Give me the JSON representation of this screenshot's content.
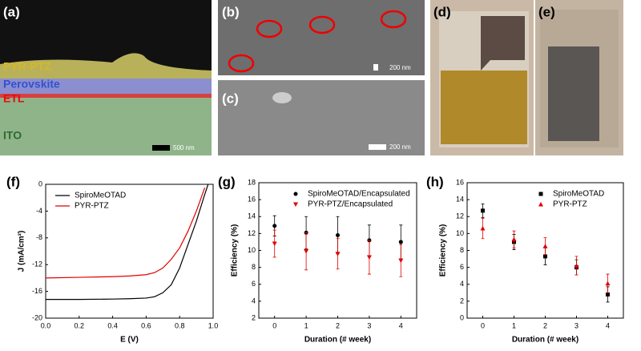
{
  "images": {
    "a": {
      "label": "(a)",
      "layers": [
        "PYR-PTZ",
        "Perovskite",
        "ETL",
        "ITO"
      ],
      "scale": "500 nm"
    },
    "b": {
      "label": "(b)",
      "scale": "200 nm"
    },
    "c": {
      "label": "(c)",
      "scale": "200 nm"
    },
    "d": {
      "label": "(d)"
    },
    "e": {
      "label": "(e)"
    }
  },
  "chart_data": [
    {
      "type": "line",
      "label": "(f)",
      "xlabel": "E (V)",
      "ylabel": "J (mA/cm²)",
      "x": [
        0,
        0.2,
        0.4,
        0.5,
        0.6,
        0.65,
        0.7,
        0.75,
        0.8,
        0.85,
        0.9,
        0.95,
        0.97
      ],
      "series": [
        {
          "name": "SpiroMeOTAD",
          "color": "#000000",
          "values": [
            -17.2,
            -17.2,
            -17.15,
            -17.1,
            -17.0,
            -16.8,
            -16.2,
            -15,
            -12.5,
            -9,
            -5.5,
            -1.5,
            0
          ]
        },
        {
          "name": "PYR-PTZ",
          "color": "#e00000",
          "values": [
            -14,
            -13.9,
            -13.8,
            -13.7,
            -13.5,
            -13.2,
            -12.5,
            -11.2,
            -9.5,
            -7,
            -4,
            -0.5,
            null
          ]
        }
      ],
      "xlim": [
        0,
        1.0
      ],
      "xticks": [
        {
          "value": 0,
          "label": "0.0"
        },
        0.2,
        0.4,
        0.6,
        0.8,
        {
          "value": 1,
          "label": "1.0"
        }
      ],
      "ylim": [
        -20,
        0
      ],
      "yticks": [
        0,
        -4,
        -8,
        -12,
        -16,
        -20
      ],
      "legend": "upper left"
    },
    {
      "type": "scatter",
      "label": "(g)",
      "xlabel": "Duration (# week)",
      "ylabel": "Efficiency (%)",
      "x": [
        0,
        1,
        2,
        3,
        4
      ],
      "series": [
        {
          "name": "SpiroMeOTAD/Encapsulated",
          "color": "#000000",
          "marker": "circle",
          "values": [
            12.9,
            12.1,
            11.8,
            11.2,
            11.0
          ],
          "errors": [
            1.2,
            1.9,
            2.2,
            1.8,
            2.0
          ]
        },
        {
          "name": "PYR-PTZ/Encapsulated",
          "color": "#e00000",
          "marker": "triangle-down",
          "values": [
            10.8,
            9.9,
            9.6,
            9.2,
            8.8
          ],
          "errors": [
            1.6,
            2.2,
            1.8,
            2.0,
            1.9
          ]
        }
      ],
      "xlim": [
        -0.5,
        4.5
      ],
      "xticks": [
        0,
        1,
        2,
        3,
        4
      ],
      "ylim": [
        2,
        18
      ],
      "yticks": [
        2,
        4,
        6,
        8,
        10,
        12,
        14,
        16,
        18
      ],
      "legend": "upper right"
    },
    {
      "type": "scatter",
      "label": "(h)",
      "xlabel": "Duration (# week)",
      "ylabel": "Efficiency (%)",
      "x": [
        0,
        1,
        2,
        3,
        4
      ],
      "series": [
        {
          "name": "SpiroMeOTAD",
          "color": "#000000",
          "marker": "square",
          "values": [
            12.7,
            9.0,
            7.3,
            6.0,
            2.8
          ],
          "errors": [
            0.8,
            0.9,
            1.0,
            0.9,
            0.9
          ]
        },
        {
          "name": "PYR-PTZ",
          "color": "#e00000",
          "marker": "triangle-up",
          "values": [
            10.6,
            9.3,
            8.5,
            6.2,
            4.1
          ],
          "errors": [
            1.2,
            1.0,
            1.0,
            1.1,
            1.1
          ]
        }
      ],
      "xlim": [
        -0.5,
        4.5
      ],
      "xticks": [
        0,
        1,
        2,
        3,
        4
      ],
      "ylim": [
        0,
        16
      ],
      "yticks": [
        0,
        2,
        4,
        6,
        8,
        10,
        12,
        14,
        16
      ],
      "legend": "upper right"
    }
  ]
}
